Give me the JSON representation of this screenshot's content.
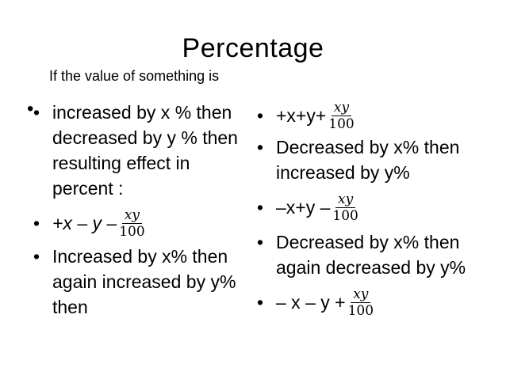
{
  "title": "Percentage",
  "subtitle": "If the value of something is",
  "bullet_char": "•",
  "left": {
    "item1_lines": [
      "increased by x % then",
      "decreased by y % then",
      "resulting effect in",
      "percent :"
    ],
    "item2_expr": "+x – y –",
    "item2_num": "xy",
    "item2_den": "100",
    "item3_lines": [
      "Increased by x% then",
      "again increased by y%",
      "then"
    ]
  },
  "right": {
    "item1_expr": "+x+y+",
    "item1_num": "xy",
    "item1_den": "100",
    "item2_lines": [
      "Decreased by x% then",
      "increased by y%"
    ],
    "item3_expr": "–x+y –",
    "item3_num": "xy",
    "item3_den": "100",
    "item4_lines": [
      "Decreased by x% then",
      "again decreased by y%"
    ],
    "item5_expr": "– x – y +",
    "item5_num": "xy",
    "item5_den": "100"
  }
}
